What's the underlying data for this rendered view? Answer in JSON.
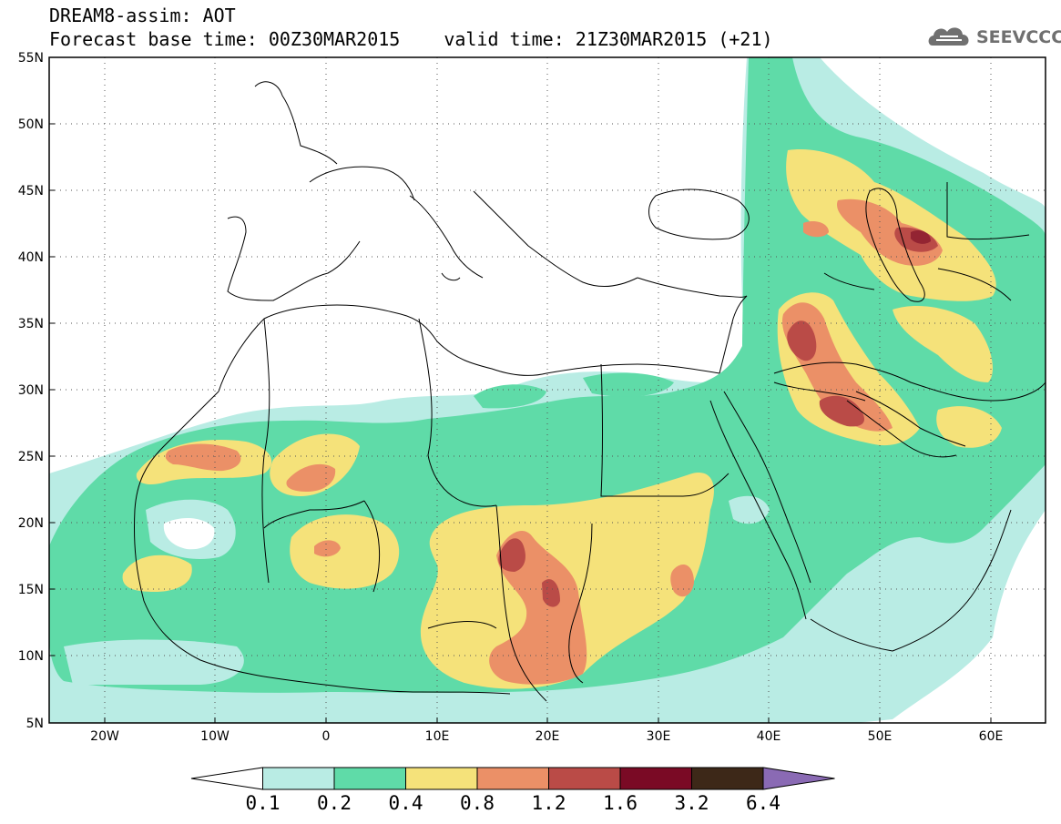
{
  "title": {
    "line1": "DREAM8-assim: AOT",
    "base_time": "Forecast base time: 00Z30MAR2015",
    "valid_time": "valid time: 21Z30MAR2015 (+21)"
  },
  "logo": {
    "text": "SEEVCCC",
    "icon": "cloud-logo-icon"
  },
  "map": {
    "projection": "lat-lon",
    "lon_range": [
      -25,
      65
    ],
    "lat_range": [
      5,
      55
    ],
    "grid": "dotted",
    "lat_ticks": [
      "55N",
      "50N",
      "45N",
      "40N",
      "35N",
      "30N",
      "25N",
      "20N",
      "15N",
      "10N",
      "5N"
    ],
    "lon_ticks": [
      "20W",
      "10W",
      "0",
      "10E",
      "20E",
      "30E",
      "40E",
      "50E",
      "60E"
    ]
  },
  "colorbar": {
    "labels": [
      "0.1",
      "0.2",
      "0.4",
      "0.8",
      "1.2",
      "1.6",
      "3.2",
      "6.4"
    ],
    "colors": [
      "#ffffff",
      "#b9ece4",
      "#5fdba8",
      "#f5e27a",
      "#eb9067",
      "#ba4b47",
      "#7a0a25",
      "#3d2818",
      "#8a6ab4"
    ]
  }
}
